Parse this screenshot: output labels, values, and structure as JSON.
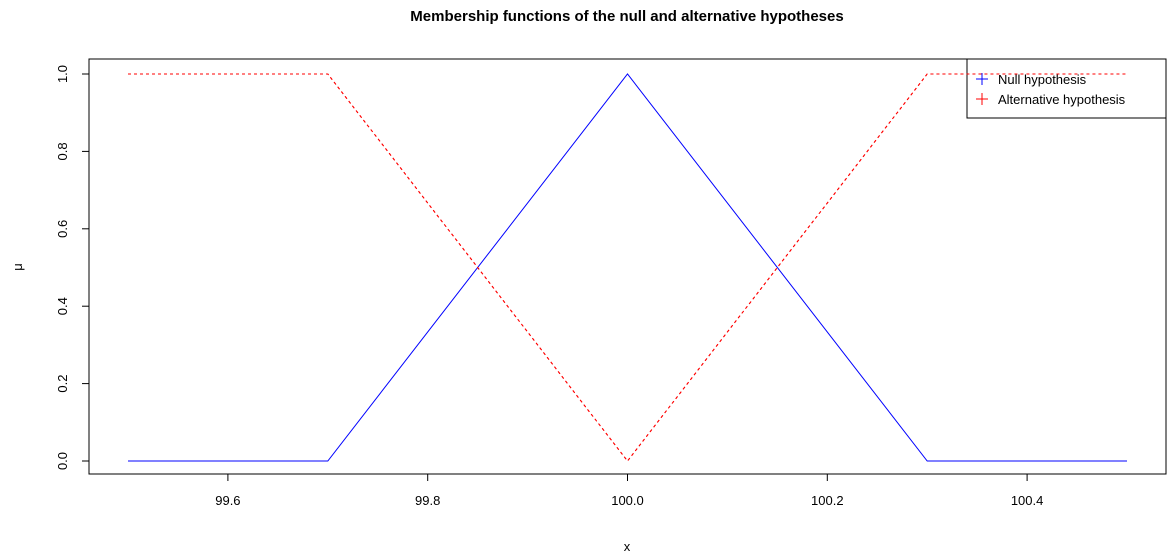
{
  "chart_data": {
    "type": "line",
    "title": "Membership functions of the null and alternative hypotheses",
    "xlabel": "x",
    "ylabel": "μ",
    "xlim": [
      99.5,
      100.5
    ],
    "ylim": [
      0,
      1
    ],
    "x_ticks": [
      "99.6",
      "99.8",
      "100.0",
      "100.2",
      "100.4"
    ],
    "y_ticks": [
      "0.0",
      "0.2",
      "0.4",
      "0.6",
      "0.8",
      "1.0"
    ],
    "grid": false,
    "legend_position": "top-right",
    "series": [
      {
        "name": "Null hypothesis",
        "color": "#0000FF",
        "style": "solid",
        "x": [
          99.5,
          99.7,
          100.0,
          100.3,
          100.5
        ],
        "y": [
          0,
          0,
          1,
          0,
          0
        ]
      },
      {
        "name": "Alternative hypothesis",
        "color": "#FF0000",
        "style": "dashed",
        "x": [
          99.5,
          99.7,
          100.0,
          100.3,
          100.5
        ],
        "y": [
          1,
          1,
          0,
          1,
          1
        ]
      }
    ]
  }
}
